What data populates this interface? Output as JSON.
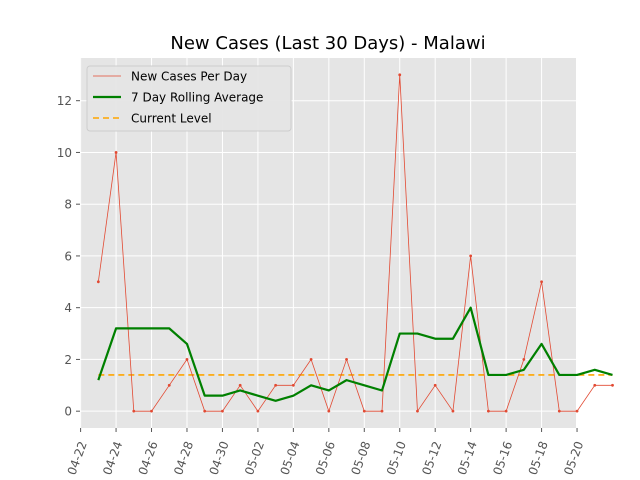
{
  "chart_data": {
    "type": "line",
    "title": "New Cases (Last 30 Days) - Malawi",
    "xlabel": "",
    "ylabel": "",
    "x": [
      "04-23",
      "04-24",
      "04-25",
      "04-26",
      "04-27",
      "04-28",
      "04-29",
      "04-30",
      "05-01",
      "05-02",
      "05-03",
      "05-04",
      "05-05",
      "05-06",
      "05-07",
      "05-08",
      "05-09",
      "05-10",
      "05-11",
      "05-12",
      "05-13",
      "05-14",
      "05-15",
      "05-16",
      "05-17",
      "05-18",
      "05-19",
      "05-20",
      "05-21",
      "05-22"
    ],
    "x_ticks": [
      "04-22",
      "04-24",
      "04-26",
      "04-28",
      "04-30",
      "05-02",
      "05-04",
      "05-06",
      "05-08",
      "05-10",
      "05-12",
      "05-14",
      "05-16",
      "05-18",
      "05-20"
    ],
    "y_ticks": [
      0,
      2,
      4,
      6,
      8,
      10,
      12
    ],
    "ylim": [
      -0.65,
      13.65
    ],
    "grid": true,
    "legend_position": "top-left",
    "series": [
      {
        "name": "New Cases Per Day",
        "color": "#e24a33",
        "style": "thin-line-with-dots",
        "values": [
          5,
          10,
          0,
          0,
          1,
          2,
          0,
          0,
          1,
          0,
          1,
          1,
          2,
          0,
          2,
          0,
          0,
          13,
          0,
          1,
          0,
          6,
          0,
          0,
          2,
          5,
          0,
          0,
          1,
          1
        ]
      },
      {
        "name": "7 Day Rolling Average",
        "color": "#008000",
        "style": "thick-line",
        "values": [
          1.2,
          3.2,
          3.2,
          3.2,
          3.2,
          2.6,
          0.6,
          0.6,
          0.8,
          0.6,
          0.4,
          0.6,
          1.0,
          0.8,
          1.2,
          1.0,
          0.8,
          3.0,
          3.0,
          2.8,
          2.8,
          4.0,
          1.4,
          1.4,
          1.6,
          2.6,
          1.4,
          1.4,
          1.6,
          1.4
        ]
      },
      {
        "name": "Current Level",
        "color": "#ffa500",
        "style": "dashed",
        "values": [
          1.4,
          1.4,
          1.4,
          1.4,
          1.4,
          1.4,
          1.4,
          1.4,
          1.4,
          1.4,
          1.4,
          1.4,
          1.4,
          1.4,
          1.4,
          1.4,
          1.4,
          1.4,
          1.4,
          1.4,
          1.4,
          1.4,
          1.4,
          1.4,
          1.4,
          1.4,
          1.4,
          1.4,
          1.4,
          1.4
        ]
      }
    ]
  }
}
